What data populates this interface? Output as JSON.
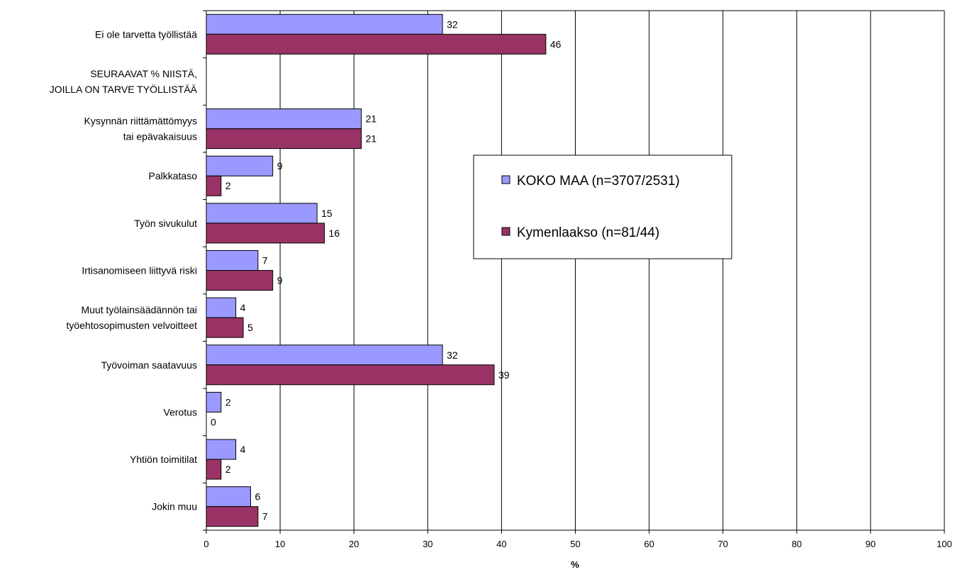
{
  "chart_data": {
    "type": "bar",
    "orientation": "horizontal",
    "categories": [
      [
        "Ei ole tarvetta työllistää"
      ],
      [
        "SEURAAVAT % NIISTÄ,",
        "JOILLA ON TARVE TYÖLLISTÄÄ"
      ],
      [
        "Kysynnän riittämättömyys",
        "tai epävakaisuus"
      ],
      [
        "Palkkataso"
      ],
      [
        "Työn sivukulut"
      ],
      [
        "Irtisanomiseen liittyvä riski"
      ],
      [
        "Muut työlainsäädännön tai",
        "työehtosopimusten velvoitteet"
      ],
      [
        "Työvoiman saatavuus"
      ],
      [
        "Verotus"
      ],
      [
        "Yhtiön toimitilat"
      ],
      [
        "Jokin muu"
      ]
    ],
    "series": [
      {
        "name": "KOKO MAA (n=3707/2531)",
        "color": "#9999ff",
        "values": [
          32,
          null,
          21,
          9,
          15,
          7,
          4,
          32,
          2,
          4,
          6
        ]
      },
      {
        "name": "Kymenlaakso (n=81/44)",
        "color": "#993366",
        "values": [
          46,
          null,
          21,
          2,
          16,
          9,
          5,
          39,
          0,
          2,
          7
        ]
      }
    ],
    "xlabel": "%",
    "xlim": [
      0,
      100
    ],
    "xticks": [
      0,
      10,
      20,
      30,
      40,
      50,
      60,
      70,
      80,
      90,
      100
    ],
    "grid": "vertical",
    "legend_position": "right"
  }
}
